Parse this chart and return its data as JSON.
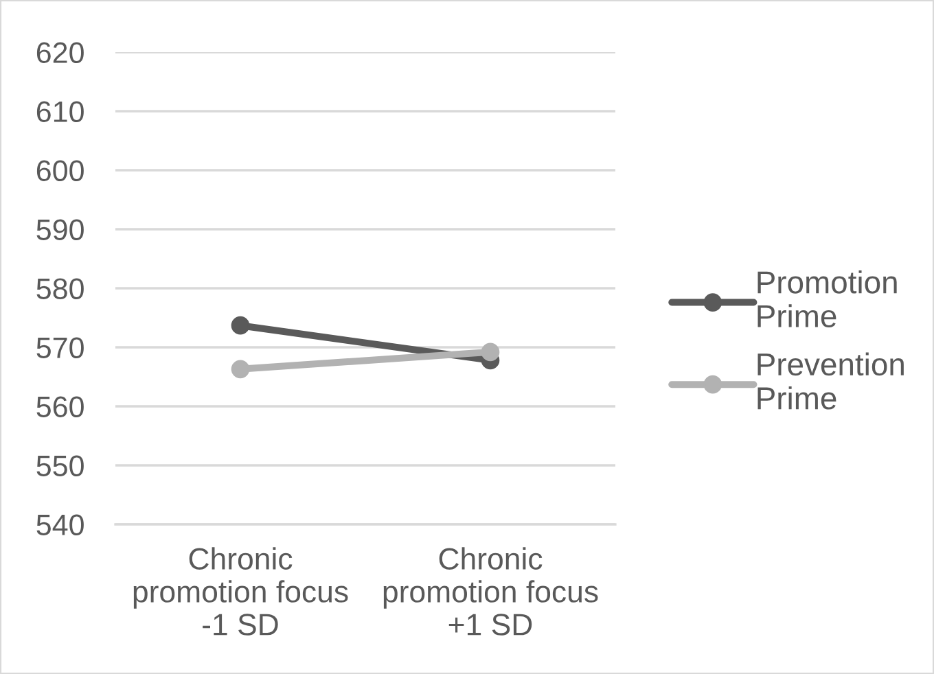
{
  "chart_data": {
    "type": "line",
    "categories": [
      "Chronic promotion focus -1 SD",
      "Chronic promotion focus +1 SD"
    ],
    "series": [
      {
        "name": "Promotion Prime",
        "color": "#5a5a5a",
        "values": [
          573.7,
          567.8
        ]
      },
      {
        "name": "Prevention Prime",
        "color": "#b2b2b2",
        "values": [
          566.3,
          569.2
        ]
      }
    ],
    "ylim": [
      540,
      620
    ],
    "yticks": [
      540,
      550,
      560,
      570,
      580,
      590,
      600,
      610,
      620
    ],
    "grid": "y",
    "legend": "right",
    "marker": "circle"
  }
}
